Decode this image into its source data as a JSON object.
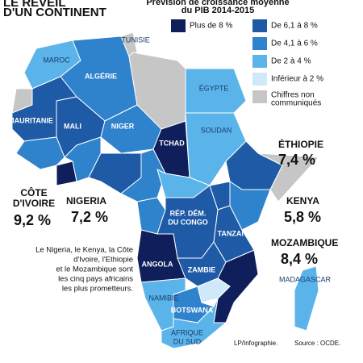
{
  "header": {
    "title": [
      "LE RÉVEIL",
      "D'UN CONTINENT"
    ]
  },
  "legend": {
    "title": [
      "Prévision de croissance moyenne",
      "du PIB 2014-2015"
    ],
    "items": [
      {
        "label": [
          "Plus de 8 %"
        ],
        "color": "#0e1f5b"
      },
      {
        "label": [
          "De 6,1 à 8 %"
        ],
        "color": "#1e5aa5"
      },
      {
        "label": [
          "De 4,1 à 6 %"
        ],
        "color": "#2f82cc"
      },
      {
        "label": [
          "De 2 à 4 %"
        ],
        "color": "#5ab4ea"
      },
      {
        "label": [
          "Inférieur à 2 %"
        ],
        "color": "#cfe9fa"
      },
      {
        "label": [
          "Chiffres non",
          "communiqués"
        ],
        "color": "#c6c6c6"
      }
    ]
  },
  "countries": [
    {
      "label": [
        "MAROC"
      ],
      "class": 3
    },
    {
      "label": [
        "ALGÉRIE"
      ],
      "class": 2
    },
    {
      "label": [
        "TUNISIE"
      ],
      "class": 5
    },
    {
      "label": [
        "ÉGYPTE"
      ],
      "class": 3
    },
    {
      "label": [
        "MAURITANIE"
      ],
      "class": 1
    },
    {
      "label": [
        "MALI"
      ],
      "class": 1
    },
    {
      "label": [
        "NIGER"
      ],
      "class": 2
    },
    {
      "label": [
        "TCHAD"
      ],
      "class": 0
    },
    {
      "label": [
        "SOUDAN"
      ],
      "class": 3
    },
    {
      "label": [
        "RÉP. DÉM.",
        "DU CONGO"
      ],
      "class": 1
    },
    {
      "label": [
        "TANZANIE"
      ],
      "class": 1
    },
    {
      "label": [
        "ANGOLA"
      ],
      "class": 0
    },
    {
      "label": [
        "ZAMBIE"
      ],
      "class": 1
    },
    {
      "label": [
        "NAMIBIE"
      ],
      "class": 3
    },
    {
      "label": [
        "BOTSWANA"
      ],
      "class": 2
    },
    {
      "label": [
        "AFRIQUE",
        "DU SUD"
      ],
      "class": 3
    },
    {
      "label": [
        "MADAGASCAR"
      ],
      "class": 3
    }
  ],
  "callouts": [
    {
      "name": "ÉTHIOPIE",
      "value": "7,4 %"
    },
    {
      "name": "KENYA",
      "value": "5,8 %"
    },
    {
      "name": "MOZAMBIQUE",
      "value": "8,4 %"
    },
    {
      "name": "NIGERIA",
      "value": "7,2 %"
    },
    {
      "name": [
        "CÔTE",
        "D'IVOIRE"
      ],
      "value": "9,2 %"
    }
  ],
  "note": [
    "Le Nigeria, le Kenya, la Côte",
    "d'Ivoire, l'Ethiopie",
    "et le Mozambique sont",
    "les cinq pays africains",
    "les plus prometteurs."
  ],
  "credits": [
    "LP/Infographie.",
    "Source : OCDE."
  ]
}
